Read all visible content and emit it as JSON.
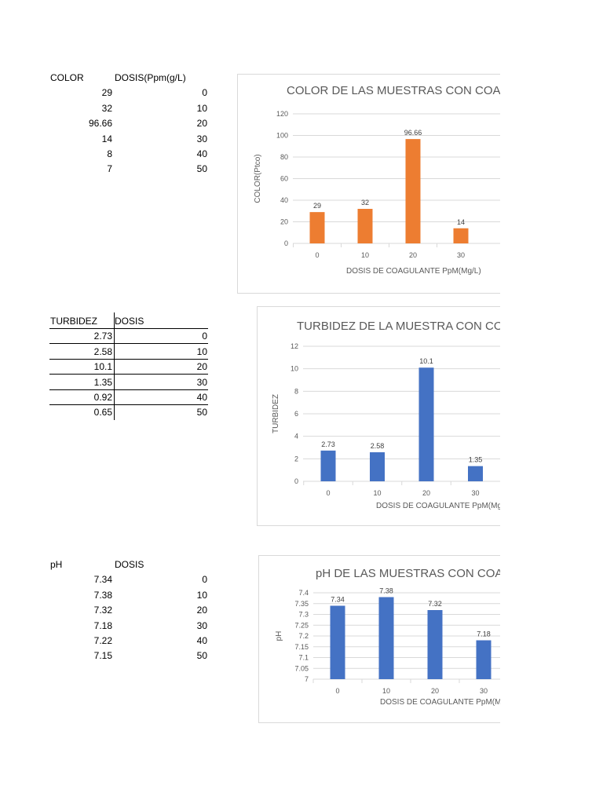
{
  "tables": [
    {
      "headers": [
        "COLOR",
        "DOSIS(Ppm(g/L)"
      ],
      "rows": [
        [
          "29",
          "0"
        ],
        [
          "32",
          "10"
        ],
        [
          "96.66",
          "20"
        ],
        [
          "14",
          "30"
        ],
        [
          "8",
          "40"
        ],
        [
          "7",
          "50"
        ]
      ]
    },
    {
      "headers": [
        "TURBIDEZ",
        "DOSIS"
      ],
      "rows": [
        [
          "2.73",
          "0"
        ],
        [
          "2.58",
          "10"
        ],
        [
          "10.1",
          "20"
        ],
        [
          "1.35",
          "30"
        ],
        [
          "0.92",
          "40"
        ],
        [
          "0.65",
          "50"
        ]
      ]
    },
    {
      "headers": [
        "pH",
        "DOSIS"
      ],
      "rows": [
        [
          "7.34",
          "0"
        ],
        [
          "7.38",
          "10"
        ],
        [
          "7.32",
          "20"
        ],
        [
          "7.18",
          "30"
        ],
        [
          "7.22",
          "40"
        ],
        [
          "7.15",
          "50"
        ]
      ]
    }
  ],
  "chart_data": [
    {
      "type": "bar",
      "title": "COLOR DE LAS MUESTRAS CON COAGU",
      "xlabel": "DOSIS DE COAGULANTE PpM(Mg/L)",
      "ylabel": "COLOR(Ptco)",
      "categories": [
        "0",
        "10",
        "20",
        "30"
      ],
      "values": [
        29,
        32,
        96.66,
        14
      ],
      "data_labels": [
        "29",
        "32",
        "96.66",
        "14"
      ],
      "ylim": [
        0,
        120
      ],
      "yticks": [
        "0",
        "20",
        "40",
        "60",
        "80",
        "100",
        "120"
      ],
      "color": "#ed7d31",
      "grid": true
    },
    {
      "type": "bar",
      "title": "TURBIDEZ DE LA MUESTRA CON COA",
      "xlabel": "DOSIS DE COAGULANTE PpM(Mg",
      "ylabel": "TURBIDEZ",
      "categories": [
        "0",
        "10",
        "20",
        "30"
      ],
      "values": [
        2.73,
        2.58,
        10.1,
        1.35
      ],
      "data_labels": [
        "2.73",
        "2.58",
        "10.1",
        "1.35"
      ],
      "ylim": [
        0,
        12
      ],
      "yticks": [
        "0",
        "2",
        "4",
        "6",
        "8",
        "10",
        "12"
      ],
      "color": "#4472c4",
      "grid": true
    },
    {
      "type": "bar",
      "title": "pH DE LAS MUESTRAS CON COAG",
      "xlabel": "DOSIS DE COAGULANTE PpM(M",
      "ylabel": "pH",
      "categories": [
        "0",
        "10",
        "20",
        "30"
      ],
      "values": [
        7.34,
        7.38,
        7.32,
        7.18
      ],
      "data_labels": [
        "7.34",
        "7.38",
        "7.32",
        "7.18"
      ],
      "ylim": [
        7,
        7.4
      ],
      "yticks": [
        "7",
        "7.05",
        "7.1",
        "7.15",
        "7.2",
        "7.25",
        "7.3",
        "7.35",
        "7.4"
      ],
      "color": "#4472c4",
      "grid": true
    }
  ]
}
